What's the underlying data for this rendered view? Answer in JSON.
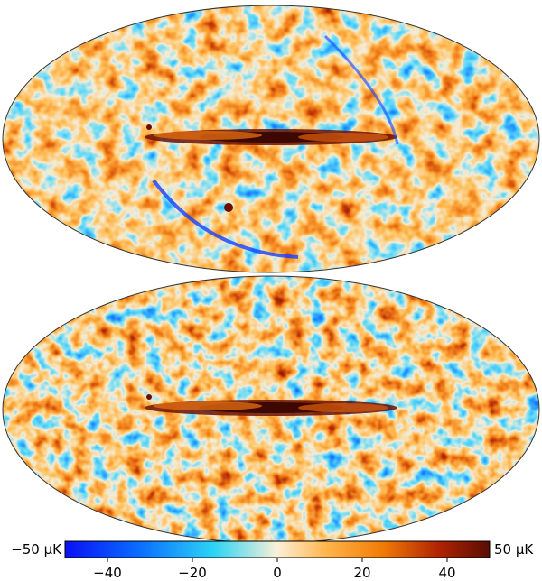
{
  "maps": [
    {
      "name": "Sky map (upper panel)"
    },
    {
      "name": "Sky map (lower panel)"
    }
  ],
  "colorbar": {
    "min_label": "−50 µK",
    "max_label": "50 µK",
    "min": -50,
    "max": 50,
    "ticks": [
      {
        "value": -40,
        "label": "−40"
      },
      {
        "value": -20,
        "label": "−20"
      },
      {
        "value": 0,
        "label": "0"
      },
      {
        "value": 20,
        "label": "20"
      },
      {
        "value": 40,
        "label": "40"
      }
    ],
    "colors": [
      "#0a10f4",
      "#0a6bff",
      "#2bd4f6",
      "#fbf0d8",
      "#ffb348",
      "#f07a06",
      "#b02304",
      "#5a0d03"
    ]
  }
}
